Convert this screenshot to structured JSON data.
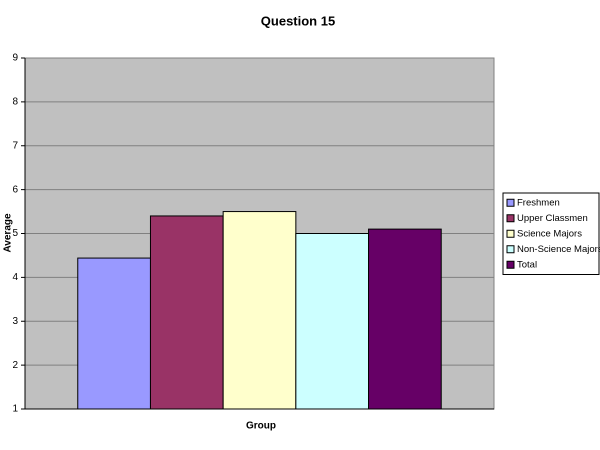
{
  "chart_data": {
    "type": "bar",
    "title": "Question 15",
    "x_label": "Group",
    "y_label": "Average",
    "categories": [
      null
    ],
    "series": [
      {
        "name": "Freshmen",
        "color": "#9999ff",
        "values": [
          4.44
        ]
      },
      {
        "name": "Upper Classmen",
        "color": "#993366",
        "values": [
          5.4
        ]
      },
      {
        "name": "Science Majors",
        "color": "#ffffcc",
        "values": [
          5.5
        ]
      },
      {
        "name": "Non-Science Majors",
        "color": "#ccffff",
        "values": [
          5.0
        ]
      },
      {
        "name": "Total",
        "color": "#660066",
        "values": [
          5.1
        ]
      }
    ],
    "ylim": [
      1,
      9
    ],
    "yticks": [
      1,
      2,
      3,
      4,
      5,
      6,
      7,
      8,
      9
    ],
    "grid": true,
    "legend": "right"
  }
}
